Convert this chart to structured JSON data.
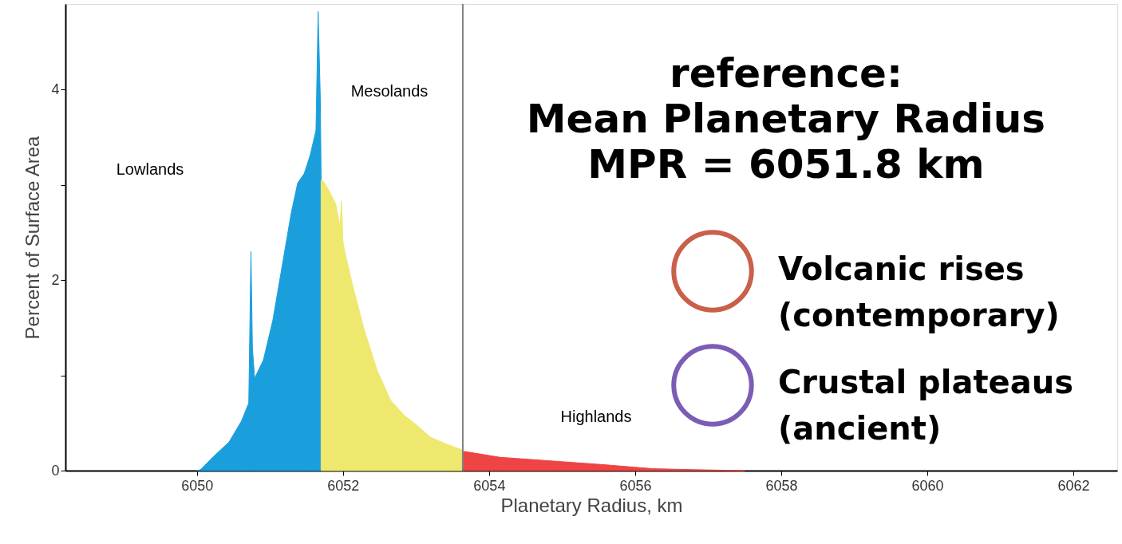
{
  "chart_data": {
    "type": "area",
    "xlabel": "Planetary Radius, km",
    "ylabel": "Percent of Surface Area",
    "xlim": [
      6048.2,
      6062.6
    ],
    "xticks": [
      6050,
      6052,
      6054,
      6056,
      6058,
      6060,
      6062
    ],
    "ylim": [
      0,
      4.9
    ],
    "yticks": [
      0,
      {
        "value": 1,
        "label": null
      },
      2,
      {
        "value": 3,
        "label": null
      },
      4
    ],
    "grid": false,
    "series": [
      {
        "color": "#1a9fdc",
        "x": [
          6050.0,
          6050.05,
          6050.23,
          6050.44,
          6050.61,
          6050.71,
          6050.74,
          6050.76,
          6050.79,
          6050.91,
          6051.04,
          6051.17,
          6051.29,
          6051.38,
          6051.47,
          6051.55,
          6051.63,
          6051.66,
          6051.69,
          6051.7
        ],
        "values": [
          0,
          0.01,
          0.15,
          0.3,
          0.52,
          0.71,
          2.3,
          1.29,
          0.97,
          1.16,
          1.58,
          2.16,
          2.7,
          3.02,
          3.12,
          3.31,
          3.57,
          4.82,
          3.9,
          3.1
        ]
      },
      {
        "color": "#eee86e",
        "x": [
          6051.7,
          6051.72,
          6051.81,
          6051.9,
          6051.96,
          6051.98,
          6052.0,
          6052.03,
          6052.14,
          6052.29,
          6052.47,
          6052.65,
          6052.84,
          6053.02,
          6053.2,
          6053.38,
          6053.62,
          6053.64
        ],
        "values": [
          3.05,
          3.05,
          2.94,
          2.8,
          2.56,
          2.83,
          2.4,
          2.28,
          1.92,
          1.48,
          1.05,
          0.74,
          0.58,
          0.47,
          0.35,
          0.29,
          0.22,
          0.21
        ]
      },
      {
        "color": "#ef4444",
        "x": [
          6053.64,
          6053.67,
          6054.15,
          6054.88,
          6055.61,
          6056.24,
          6056.8,
          6057.5
        ],
        "values": [
          0.2,
          0.2,
          0.14,
          0.1,
          0.06,
          0.02,
          0.01,
          0
        ]
      }
    ],
    "ref_lines": [
      {
        "axis": "x",
        "value": 6053.64,
        "color": "#808080"
      }
    ],
    "annotations": [
      "Lowlands",
      "Mesolands",
      "Highlands",
      "reference:\nMean Planetary Radius\nMPR = 6051.8 km",
      "Volcanic rises\n(contemporary)",
      "Crustal plateaus\n(ancient)"
    ]
  }
}
